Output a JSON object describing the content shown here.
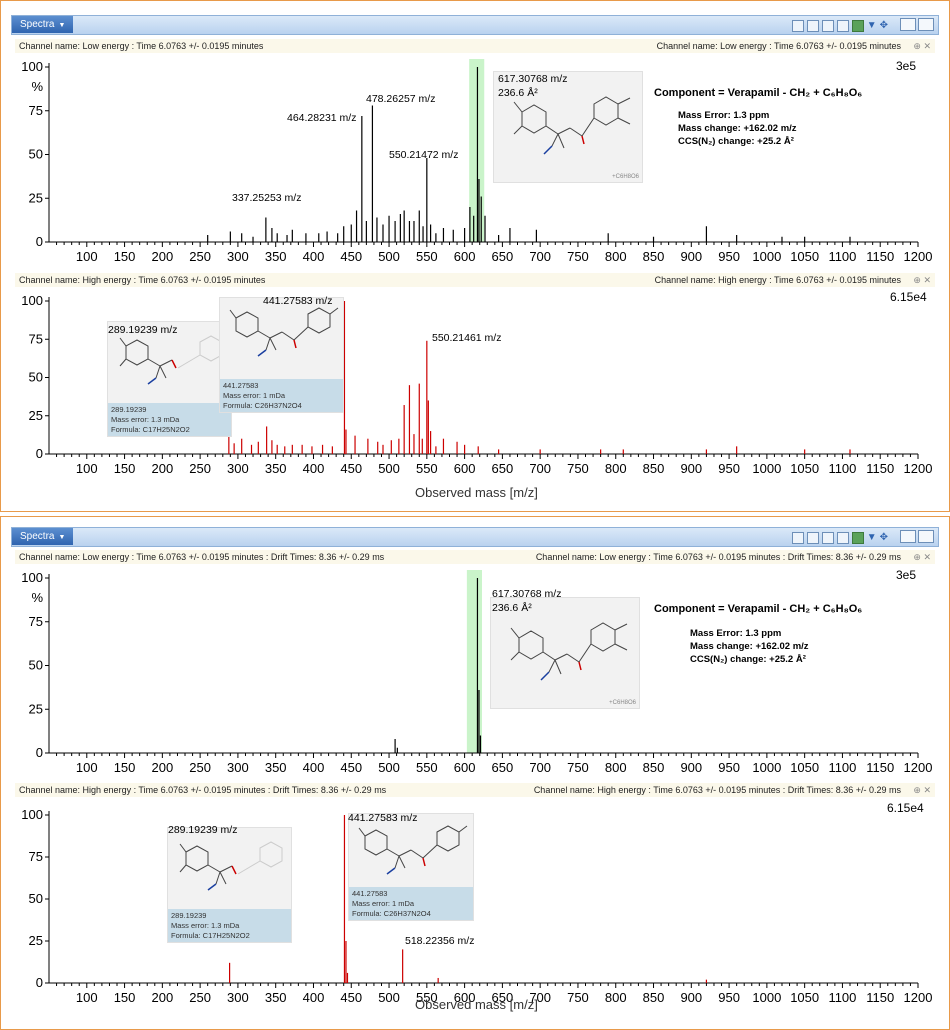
{
  "window": {
    "tab_label": "Spectra",
    "colors": {
      "accent": "#2f64b0",
      "border": "#e89a4a",
      "low_energy_trace": "#000000",
      "high_energy_trace": "#cc0000",
      "highlight": "#b8f0b8"
    }
  },
  "panels": [
    {
      "low": {
        "channel_left": "Channel name: Low energy : Time 6.0763 +/- 0.0195 minutes",
        "channel_right": "Channel name: Low energy : Time 6.0763 +/- 0.0195 minutes",
        "scale": "3e5",
        "ylabel": "%",
        "annotations": [
          "337.25253 m/z",
          "464.28231 m/z",
          "478.26257 m/z",
          "550.21472 m/z",
          "617.30768 m/z",
          "236.6 Å²"
        ],
        "struct_tag": "+C6H8O6",
        "component_title": "Component = Verapamil - CH₂ + C₆H₈O₆",
        "component_lines": [
          "Mass Error: 1.3 ppm",
          "Mass change: +162.02 m/z",
          "CCS(N₂) change: +25.2 Å²"
        ]
      },
      "high": {
        "channel_left": "Channel name: High energy : Time 6.0763 +/- 0.0195 minutes",
        "channel_right": "Channel name: High energy : Time 6.0763 +/- 0.0195 minutes",
        "scale": "6.15e4",
        "annotations": [
          "289.19239 m/z",
          "441.27583 m/z",
          "550.21461 m/z"
        ],
        "boxes": [
          {
            "mass": "289.19239",
            "error": "Mass error: 1.3 mDa",
            "formula": "Formula: C17H25N2O2"
          },
          {
            "mass": "441.27583",
            "error": "Mass error: 1 mDa",
            "formula": "Formula: C26H37N2O4"
          }
        ],
        "xlabel": "Observed mass [m/z]"
      }
    },
    {
      "low": {
        "channel_left": "Channel name: Low energy : Time 6.0763 +/- 0.0195 minutes : Drift Times: 8.36 +/- 0.29 ms",
        "channel_right": "Channel name: Low energy : Time 6.0763 +/- 0.0195 minutes : Drift Times: 8.36 +/- 0.29 ms",
        "scale": "3e5",
        "ylabel": "%",
        "annotations": [
          "617.30768 m/z",
          "236.6 Å²"
        ],
        "struct_tag": "+C6H8O6",
        "component_title": "Component = Verapamil - CH₂ + C₆H₈O₆",
        "component_lines": [
          "Mass Error: 1.3 ppm",
          "Mass change: +162.02 m/z",
          "CCS(N₂) change: +25.2 Å²"
        ]
      },
      "high": {
        "channel_left": "Channel name: High energy : Time 6.0763 +/- 0.0195 minutes : Drift Times: 8.36 +/- 0.29 ms",
        "channel_right": "Channel name: High energy : Time 6.0763 +/- 0.0195 minutes : Drift Times: 8.36 +/- 0.29 ms",
        "scale": "6.15e4",
        "annotations": [
          "289.19239 m/z",
          "441.27583 m/z",
          "518.22356 m/z"
        ],
        "boxes": [
          {
            "mass": "289.19239",
            "error": "Mass error: 1.3 mDa",
            "formula": "Formula: C17H25N2O2"
          },
          {
            "mass": "441.27583",
            "error": "Mass error: 1 mDa",
            "formula": "Formula: C26H37N2O4"
          }
        ],
        "xlabel": "Observed mass [m/z]"
      }
    }
  ],
  "chart_data": [
    {
      "type": "bar",
      "title": "",
      "xlabel": "",
      "ylabel": "%",
      "xlim": [
        50,
        1200
      ],
      "ylim": [
        0,
        100
      ],
      "x_ticks": [
        100,
        150,
        200,
        250,
        300,
        350,
        400,
        450,
        500,
        550,
        600,
        650,
        700,
        750,
        800,
        850,
        900,
        950,
        1000,
        1050,
        1100,
        1150,
        1200
      ],
      "y_ticks": [
        0,
        25,
        50,
        75,
        100
      ],
      "highlight_x": [
        606,
        626
      ],
      "series": [
        {
          "values": [
            [
              260,
              4
            ],
            [
              290,
              6
            ],
            [
              305,
              5
            ],
            [
              320,
              3
            ],
            [
              337,
              14
            ],
            [
              345,
              8
            ],
            [
              352,
              5
            ],
            [
              365,
              4
            ],
            [
              372,
              7
            ],
            [
              390,
              5
            ],
            [
              407,
              5
            ],
            [
              418,
              6
            ],
            [
              432,
              5
            ],
            [
              440,
              9
            ],
            [
              450,
              10
            ],
            [
              457,
              18
            ],
            [
              464,
              72
            ],
            [
              470,
              12
            ],
            [
              478,
              78
            ],
            [
              484,
              14
            ],
            [
              492,
              10
            ],
            [
              500,
              15
            ],
            [
              508,
              12
            ],
            [
              515,
              16
            ],
            [
              520,
              18
            ],
            [
              527,
              12
            ],
            [
              533,
              12
            ],
            [
              540,
              18
            ],
            [
              545,
              9
            ],
            [
              550,
              48
            ],
            [
              555,
              10
            ],
            [
              562,
              5
            ],
            [
              572,
              8
            ],
            [
              585,
              7
            ],
            [
              600,
              8
            ],
            [
              607,
              20
            ],
            [
              612,
              15
            ],
            [
              617,
              100
            ],
            [
              619,
              36
            ],
            [
              622,
              26
            ],
            [
              627,
              15
            ],
            [
              645,
              4
            ],
            [
              660,
              8
            ],
            [
              695,
              7
            ],
            [
              790,
              5
            ],
            [
              850,
              3
            ],
            [
              920,
              9
            ],
            [
              960,
              4
            ],
            [
              1020,
              3
            ],
            [
              1050,
              3
            ],
            [
              1110,
              3
            ]
          ]
        }
      ]
    },
    {
      "type": "bar",
      "title": "",
      "xlabel": "Observed mass [m/z]",
      "ylabel": "",
      "xlim": [
        50,
        1200
      ],
      "ylim": [
        0,
        100
      ],
      "x_ticks": [
        100,
        150,
        200,
        250,
        300,
        350,
        400,
        450,
        500,
        550,
        600,
        650,
        700,
        750,
        800,
        850,
        900,
        950,
        1000,
        1050,
        1100,
        1150,
        1200
      ],
      "y_ticks": [
        0,
        25,
        50,
        75,
        100
      ],
      "series": [
        {
          "values": [
            [
              288,
              12
            ],
            [
              295,
              7
            ],
            [
              305,
              10
            ],
            [
              318,
              6
            ],
            [
              327,
              8
            ],
            [
              338,
              18
            ],
            [
              345,
              9
            ],
            [
              352,
              6
            ],
            [
              362,
              5
            ],
            [
              372,
              6
            ],
            [
              385,
              6
            ],
            [
              398,
              5
            ],
            [
              412,
              6
            ],
            [
              425,
              5
            ],
            [
              441,
              100
            ],
            [
              443,
              16
            ],
            [
              455,
              12
            ],
            [
              472,
              10
            ],
            [
              485,
              8
            ],
            [
              492,
              6
            ],
            [
              503,
              9
            ],
            [
              513,
              10
            ],
            [
              520,
              32
            ],
            [
              527,
              45
            ],
            [
              533,
              13
            ],
            [
              540,
              46
            ],
            [
              544,
              10
            ],
            [
              550,
              74
            ],
            [
              552,
              35
            ],
            [
              555,
              15
            ],
            [
              562,
              5
            ],
            [
              572,
              10
            ],
            [
              590,
              8
            ],
            [
              600,
              6
            ],
            [
              618,
              5
            ],
            [
              645,
              3
            ],
            [
              700,
              3
            ],
            [
              780,
              3
            ],
            [
              810,
              3
            ],
            [
              920,
              3
            ],
            [
              960,
              5
            ],
            [
              1050,
              3
            ],
            [
              1110,
              3
            ]
          ]
        }
      ]
    },
    {
      "type": "bar",
      "title": "",
      "xlabel": "",
      "ylabel": "%",
      "xlim": [
        50,
        1200
      ],
      "ylim": [
        0,
        100
      ],
      "x_ticks": [
        100,
        150,
        200,
        250,
        300,
        350,
        400,
        450,
        500,
        550,
        600,
        650,
        700,
        750,
        800,
        850,
        900,
        950,
        1000,
        1050,
        1100,
        1150,
        1200
      ],
      "y_ticks": [
        0,
        25,
        50,
        75,
        100
      ],
      "highlight_x": [
        603,
        623
      ],
      "series": [
        {
          "values": [
            [
              508,
              8
            ],
            [
              511,
              3
            ],
            [
              617,
              100
            ],
            [
              619,
              36
            ],
            [
              621,
              10
            ]
          ]
        }
      ]
    },
    {
      "type": "bar",
      "title": "",
      "xlabel": "Observed mass [m/z]",
      "ylabel": "",
      "xlim": [
        50,
        1200
      ],
      "ylim": [
        0,
        100
      ],
      "x_ticks": [
        100,
        150,
        200,
        250,
        300,
        350,
        400,
        450,
        500,
        550,
        600,
        650,
        700,
        750,
        800,
        850,
        900,
        950,
        1000,
        1050,
        1100,
        1150,
        1200
      ],
      "y_ticks": [
        0,
        25,
        50,
        75,
        100
      ],
      "series": [
        {
          "values": [
            [
              289,
              12
            ],
            [
              441,
              100
            ],
            [
              443,
              25
            ],
            [
              445,
              6
            ],
            [
              518,
              20
            ],
            [
              565,
              3
            ],
            [
              920,
              2
            ]
          ]
        }
      ]
    }
  ]
}
